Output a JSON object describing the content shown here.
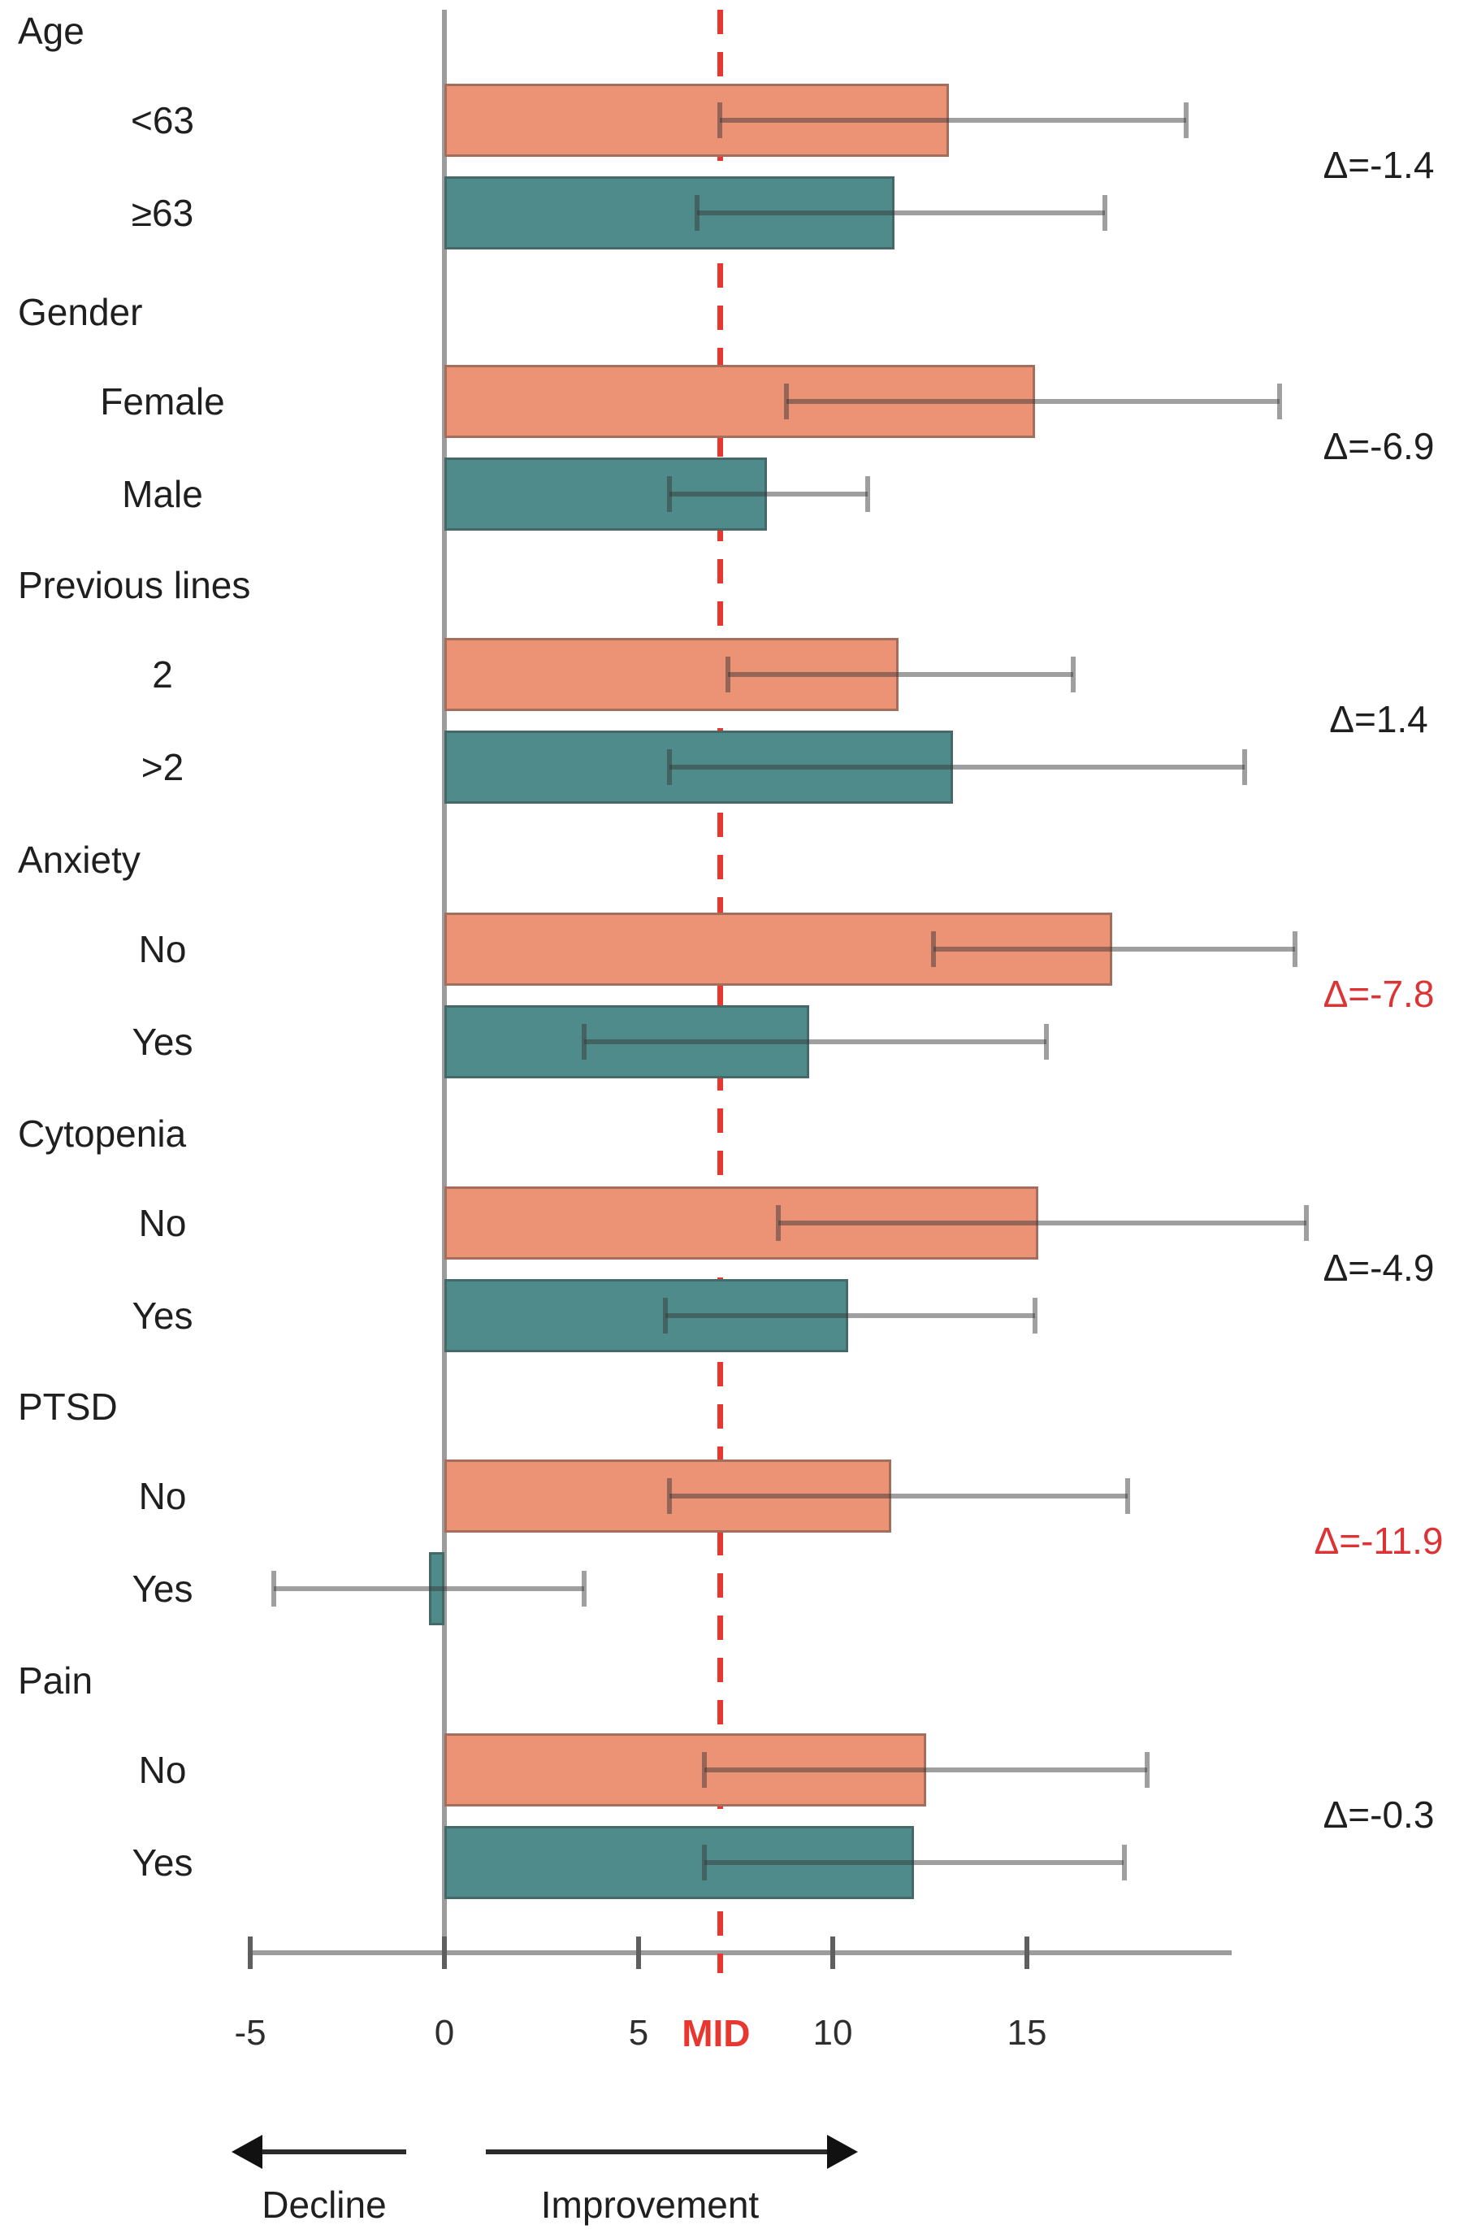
{
  "chart_data": {
    "type": "bar",
    "orientation": "horizontal",
    "title": "",
    "xlabel": "",
    "ylabel": "",
    "xlim": [
      -5.1,
      20.3
    ],
    "grid": false,
    "legend_position": "none",
    "axis": {
      "tick_values": [
        -5,
        0,
        5,
        10,
        15
      ],
      "tick_labels": [
        "-5",
        "0",
        "5",
        "10",
        "15"
      ],
      "mid_value": 7.1,
      "mid_label": "MID"
    },
    "direction_labels": {
      "left": "Decline",
      "right": "Improvement"
    },
    "colors": {
      "series1_bar": "#EC9376",
      "series2_bar": "#4F8B8B",
      "mid_line": "#E8372F",
      "delta_normal": "#1F1F1F",
      "delta_highlight": "#DC3434",
      "axis_line": "#9C9C9C",
      "tick_mark": "#5F5F5F",
      "text": "#1F1F1F"
    },
    "groups": [
      {
        "label": "Age",
        "delta_label": "Δ=-1.4",
        "delta_value": -1.4,
        "highlighted": false,
        "rows": [
          {
            "label": "<63",
            "value": 13.0,
            "ci_low": 7.1,
            "ci_high": 19.1
          },
          {
            "label": "≥63",
            "value": 11.6,
            "ci_low": 6.5,
            "ci_high": 17.0
          }
        ]
      },
      {
        "label": "Gender",
        "delta_label": "Δ=-6.9",
        "delta_value": -6.9,
        "highlighted": false,
        "rows": [
          {
            "label": "Female",
            "value": 15.2,
            "ci_low": 8.8,
            "ci_high": 21.5
          },
          {
            "label": "Male",
            "value": 8.3,
            "ci_low": 5.8,
            "ci_high": 10.9
          }
        ]
      },
      {
        "label": "Previous lines",
        "delta_label": "Δ=1.4",
        "delta_value": 1.4,
        "highlighted": false,
        "rows": [
          {
            "label": "2",
            "value": 11.7,
            "ci_low": 7.3,
            "ci_high": 16.2
          },
          {
            "label": ">2",
            "value": 13.1,
            "ci_low": 5.8,
            "ci_high": 20.6
          }
        ]
      },
      {
        "label": "Anxiety",
        "delta_label": "Δ=-7.8",
        "delta_value": -7.8,
        "highlighted": true,
        "rows": [
          {
            "label": "No",
            "value": 17.2,
            "ci_low": 12.6,
            "ci_high": 21.9
          },
          {
            "label": "Yes",
            "value": 9.4,
            "ci_low": 3.6,
            "ci_high": 15.5
          }
        ]
      },
      {
        "label": "Cytopenia",
        "delta_label": "Δ=-4.9",
        "delta_value": -4.9,
        "highlighted": false,
        "rows": [
          {
            "label": "No",
            "value": 15.3,
            "ci_low": 8.6,
            "ci_high": 22.2
          },
          {
            "label": "Yes",
            "value": 10.4,
            "ci_low": 5.7,
            "ci_high": 15.2
          }
        ]
      },
      {
        "label": "PTSD",
        "delta_label": "Δ=-11.9",
        "delta_value": -11.9,
        "highlighted": true,
        "rows": [
          {
            "label": "No",
            "value": 11.5,
            "ci_low": 5.8,
            "ci_high": 17.6
          },
          {
            "label": "Yes",
            "value": -0.4,
            "ci_low": -4.4,
            "ci_high": 3.6
          }
        ]
      },
      {
        "label": "Pain",
        "delta_label": "Δ=-0.3",
        "delta_value": -0.3,
        "highlighted": false,
        "rows": [
          {
            "label": "No",
            "value": 12.4,
            "ci_low": 6.7,
            "ci_high": 18.1
          },
          {
            "label": "Yes",
            "value": 12.1,
            "ci_low": 6.7,
            "ci_high": 17.5
          }
        ]
      }
    ]
  }
}
